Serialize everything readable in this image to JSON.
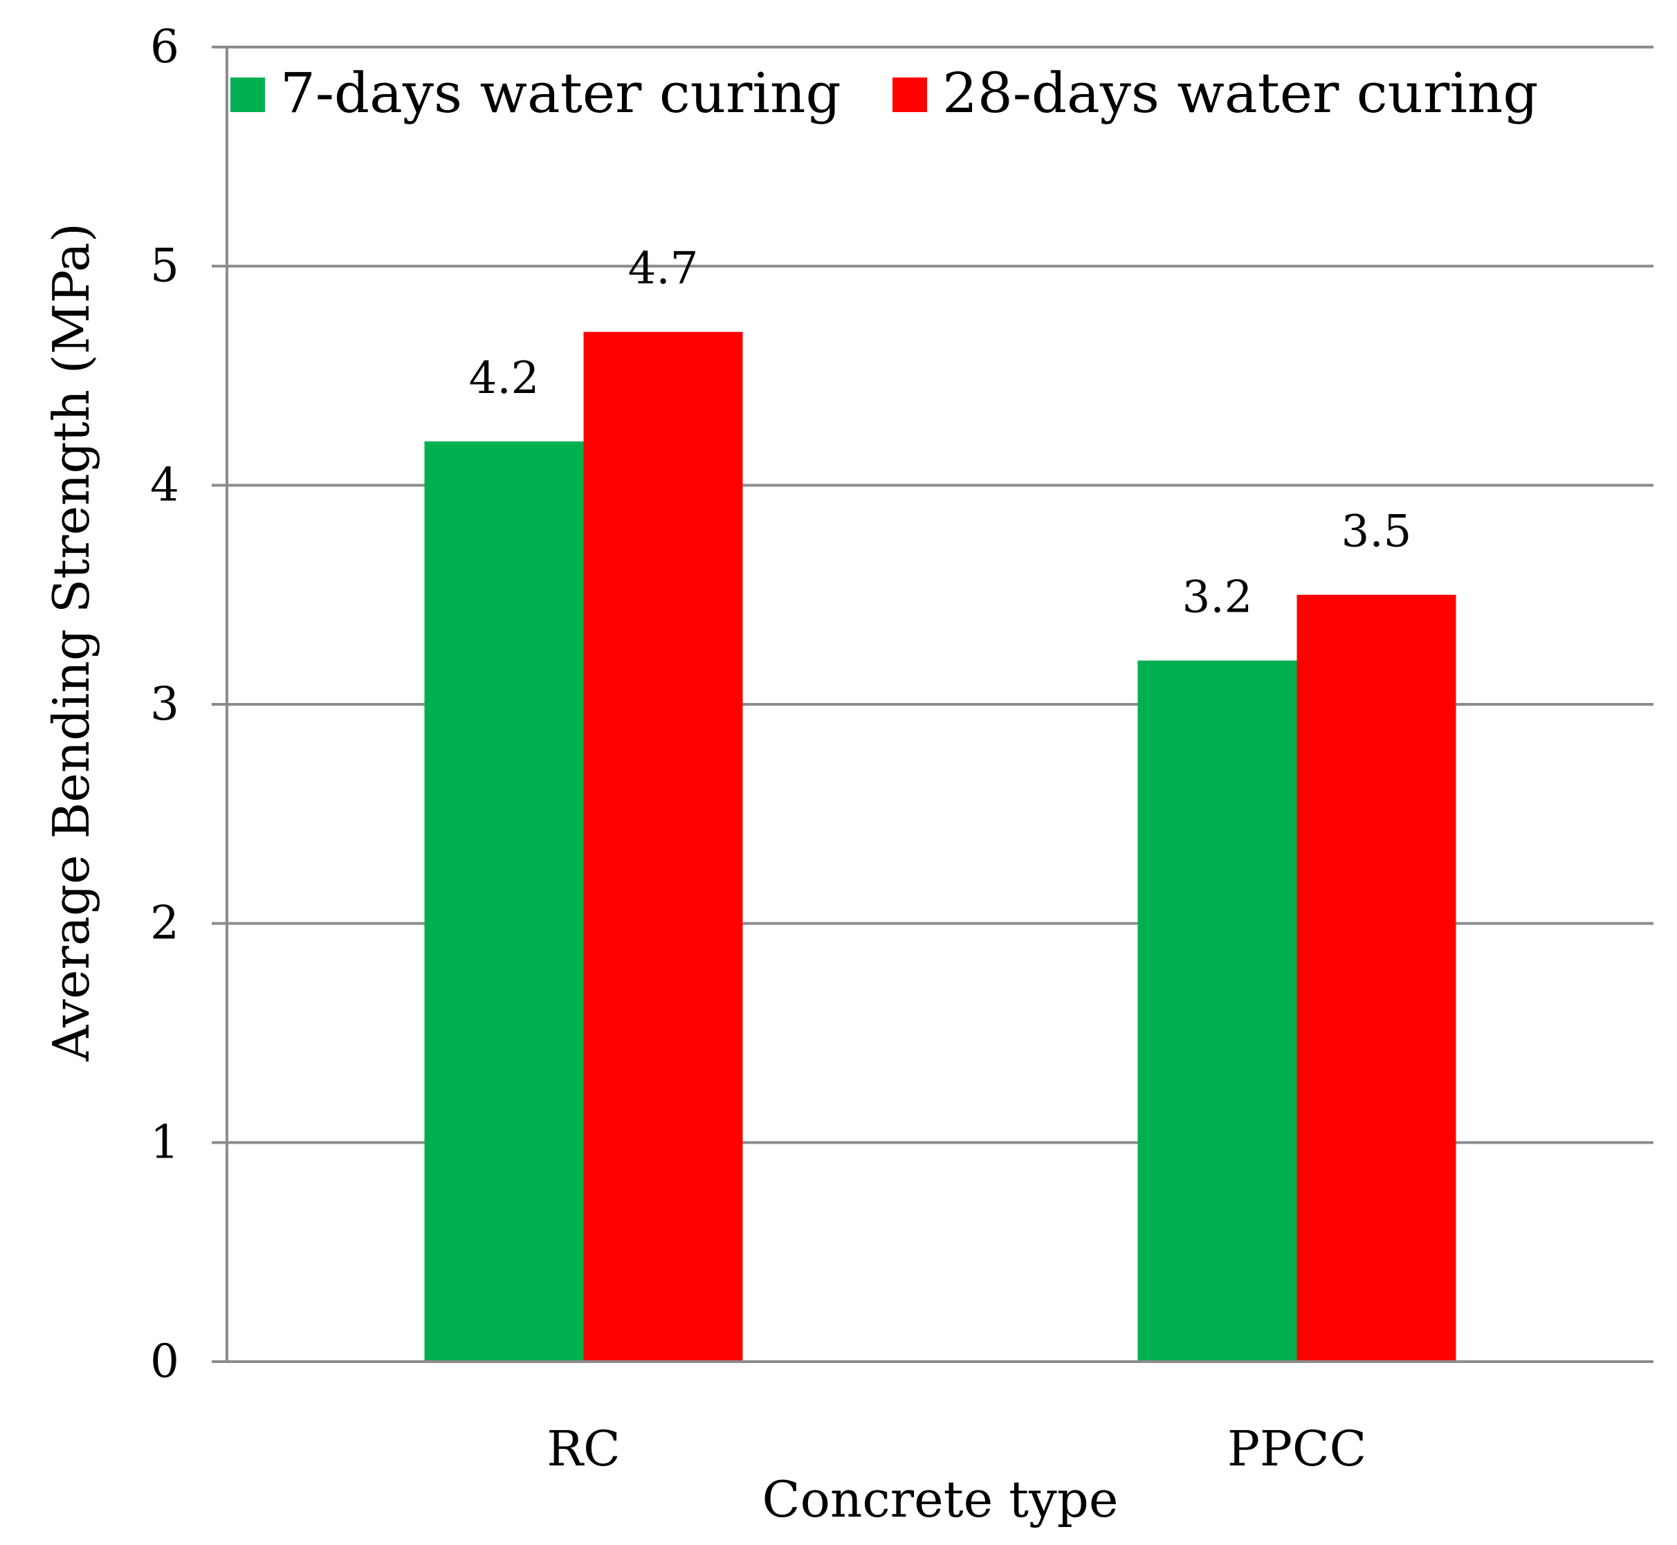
{
  "chart_data": {
    "type": "bar",
    "title": "",
    "xlabel": "Concrete type",
    "ylabel": "Average Bending Strength (MPa)",
    "categories": [
      "RC",
      "PPCC"
    ],
    "series": [
      {
        "name": "7-days water curing",
        "values": [
          4.2,
          3.2
        ],
        "color": "#00b050"
      },
      {
        "name": "28-days water curing",
        "values": [
          4.7,
          3.5
        ],
        "color": "#ff0000"
      }
    ],
    "ylim": [
      0,
      6
    ],
    "yticks": [
      "0",
      "1",
      "2",
      "3",
      "4",
      "5",
      "6"
    ],
    "data_labels": [
      [
        "4.2",
        "3.2"
      ],
      [
        "4.7",
        "3.5"
      ]
    ],
    "grid": true,
    "legend_position": "top"
  }
}
